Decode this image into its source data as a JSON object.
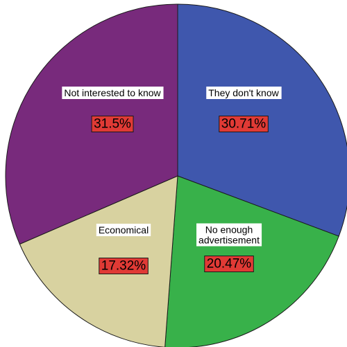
{
  "chart_data": {
    "type": "pie",
    "start_angle_deg": 0,
    "direction": "clockwise",
    "label_background_color": "#e03a35",
    "slices": [
      {
        "label": [
          "They don't know"
        ],
        "value": 30.71,
        "value_label": "30.71%",
        "color": "#3f57ad"
      },
      {
        "label": [
          "No enough",
          "advertisement"
        ],
        "value": 20.47,
        "value_label": "20.47%",
        "color": "#38b14a"
      },
      {
        "label": [
          "Economical"
        ],
        "value": 17.32,
        "value_label": "17.32%",
        "color": "#d8d2a0"
      },
      {
        "label": [
          "Not interested to know"
        ],
        "value": 31.5,
        "value_label": "31.5%",
        "color": "#782a7c"
      }
    ]
  }
}
